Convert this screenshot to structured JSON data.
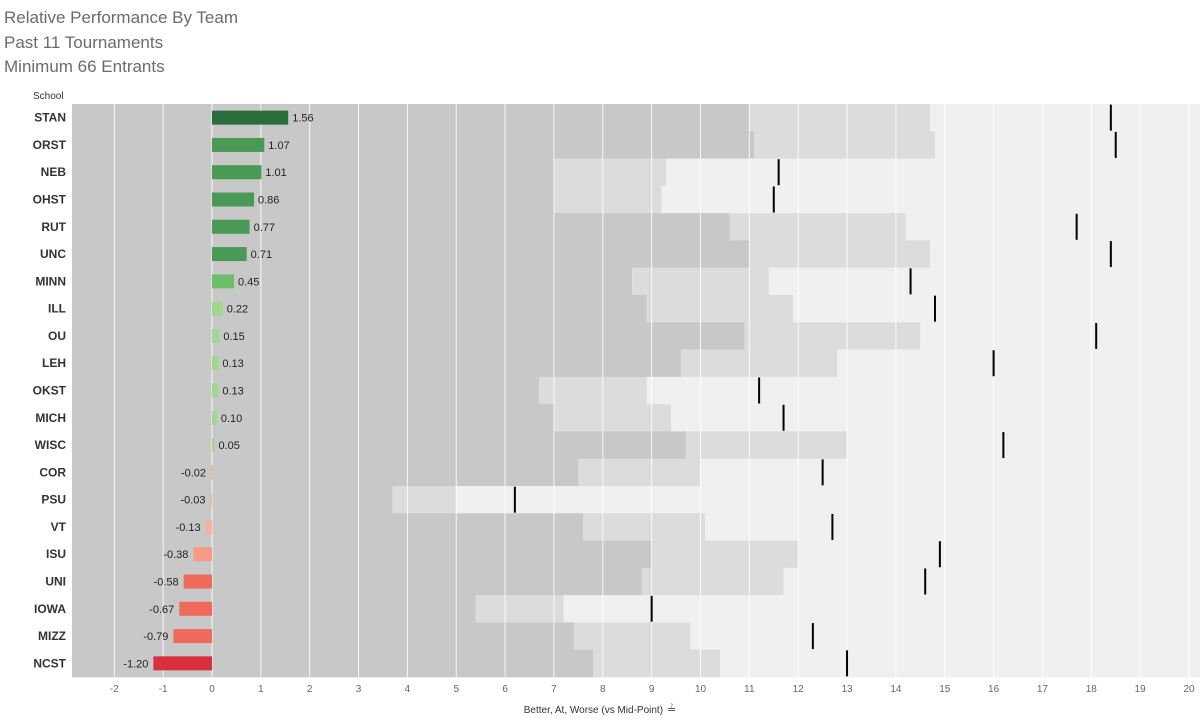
{
  "chart_data": {
    "type": "bar",
    "title": "Relative Performance By Team",
    "subtitle_1": "Past 11 Tournaments",
    "subtitle_2": "Minimum 66 Entrants",
    "row_header": "School",
    "xlabel": "Better, At, Worse (vs Mid-Point)",
    "xlim": [
      -3,
      20.2
    ],
    "x_ticks": [
      -2,
      -1,
      0,
      1,
      2,
      3,
      4,
      5,
      6,
      7,
      8,
      9,
      10,
      11,
      12,
      13,
      14,
      15,
      16,
      17,
      18,
      19,
      20
    ],
    "grid": true,
    "colors": {
      "positive_strong": "#2a6e3e",
      "positive_mid": "#4a9a55",
      "positive_light": "#9fd88e",
      "negative_light": "#f7b19f",
      "negative_mid": "#f06a5c",
      "negative_strong": "#d9303e",
      "band_worse": "#c8c8c8",
      "band_at": "#dcdcdc",
      "band_better": "#f0f0f0",
      "marker": "#000000"
    },
    "series": [
      {
        "name": "Relative Performance",
        "values": [
          1.56,
          1.07,
          1.01,
          0.86,
          0.77,
          0.71,
          0.45,
          0.22,
          0.15,
          0.13,
          0.13,
          0.1,
          0.05,
          -0.02,
          -0.03,
          -0.13,
          -0.38,
          -0.58,
          -0.67,
          -0.79,
          -1.2
        ],
        "labels": [
          "1.56",
          "1.07",
          "1.01",
          "0.86",
          "0.77",
          "0.71",
          "0.45",
          "0.22",
          "0.15",
          "0.13",
          "0.13",
          "0.10",
          "0.05",
          "-0.02",
          "-0.03",
          "-0.13",
          "-0.38",
          "-0.58",
          "-0.67",
          "-0.79",
          "-1.20"
        ]
      }
    ],
    "rows": [
      {
        "school": "STAN",
        "value": 1.56,
        "label": "1.56",
        "worse_end": 11.0,
        "at_end": 14.7,
        "marker": 18.4
      },
      {
        "school": "ORST",
        "value": 1.07,
        "label": "1.07",
        "worse_end": 11.1,
        "at_end": 14.8,
        "marker": 18.5
      },
      {
        "school": "NEB",
        "value": 1.01,
        "label": "1.01",
        "worse_start_at": 7.0,
        "worse_end": 7.0,
        "at_end": 9.3,
        "marker": 11.6
      },
      {
        "school": "OHST",
        "value": 0.86,
        "label": "0.86",
        "worse_end": 7.0,
        "at_end": 9.2,
        "marker": 11.5
      },
      {
        "school": "RUT",
        "value": 0.77,
        "label": "0.77",
        "worse_end": 10.6,
        "at_end": 14.2,
        "marker": 17.7
      },
      {
        "school": "UNC",
        "value": 0.71,
        "label": "0.71",
        "worse_end": 11.0,
        "at_end": 14.7,
        "marker": 18.4
      },
      {
        "school": "MINN",
        "value": 0.45,
        "label": "0.45",
        "worse_end": 8.6,
        "at_end": 11.4,
        "marker": 14.3
      },
      {
        "school": "ILL",
        "value": 0.22,
        "label": "0.22",
        "worse_end": 8.9,
        "at_end": 11.9,
        "marker": 14.8
      },
      {
        "school": "OU",
        "value": 0.15,
        "label": "0.15",
        "worse_end": 10.9,
        "at_end": 14.5,
        "marker": 18.1
      },
      {
        "school": "LEH",
        "value": 0.13,
        "label": "0.13",
        "worse_end": 9.6,
        "at_end": 12.8,
        "marker": 16.0
      },
      {
        "school": "OKST",
        "value": 0.13,
        "label": "0.13",
        "worse_end": 6.7,
        "at_end": 8.9,
        "marker": 11.2
      },
      {
        "school": "MICH",
        "value": 0.1,
        "label": "0.10",
        "worse_end": 7.0,
        "at_end": 9.4,
        "marker": 11.7
      },
      {
        "school": "WISC",
        "value": 0.05,
        "label": "0.05",
        "worse_end": 9.7,
        "at_end": 13.0,
        "marker": 16.2
      },
      {
        "school": "COR",
        "value": -0.02,
        "label": "-0.02",
        "worse_end": 7.5,
        "at_end": 10.0,
        "marker": 12.5
      },
      {
        "school": "PSU",
        "value": -0.03,
        "label": "-0.03",
        "worse_end": 3.7,
        "at_end": 5.0,
        "marker": 6.2
      },
      {
        "school": "VT",
        "value": -0.13,
        "label": "-0.13",
        "worse_end": 7.6,
        "at_end": 10.1,
        "marker": 12.7
      },
      {
        "school": "ISU",
        "value": -0.38,
        "label": "-0.38",
        "worse_end": 9.0,
        "at_end": 12.0,
        "marker": 14.9
      },
      {
        "school": "UNI",
        "value": -0.58,
        "label": "-0.58",
        "worse_end": 8.8,
        "at_end": 11.7,
        "marker": 14.6
      },
      {
        "school": "IOWA",
        "value": -0.67,
        "label": "-0.67",
        "worse_end": 5.4,
        "at_end": 7.2,
        "marker": 9.0
      },
      {
        "school": "MIZZ",
        "value": -0.79,
        "label": "-0.79",
        "worse_end": 7.4,
        "at_end": 9.8,
        "marker": 12.3
      },
      {
        "school": "NCST",
        "value": -1.2,
        "label": "-1.20",
        "worse_end": 7.8,
        "at_end": 10.4,
        "marker": 13.0
      }
    ]
  }
}
